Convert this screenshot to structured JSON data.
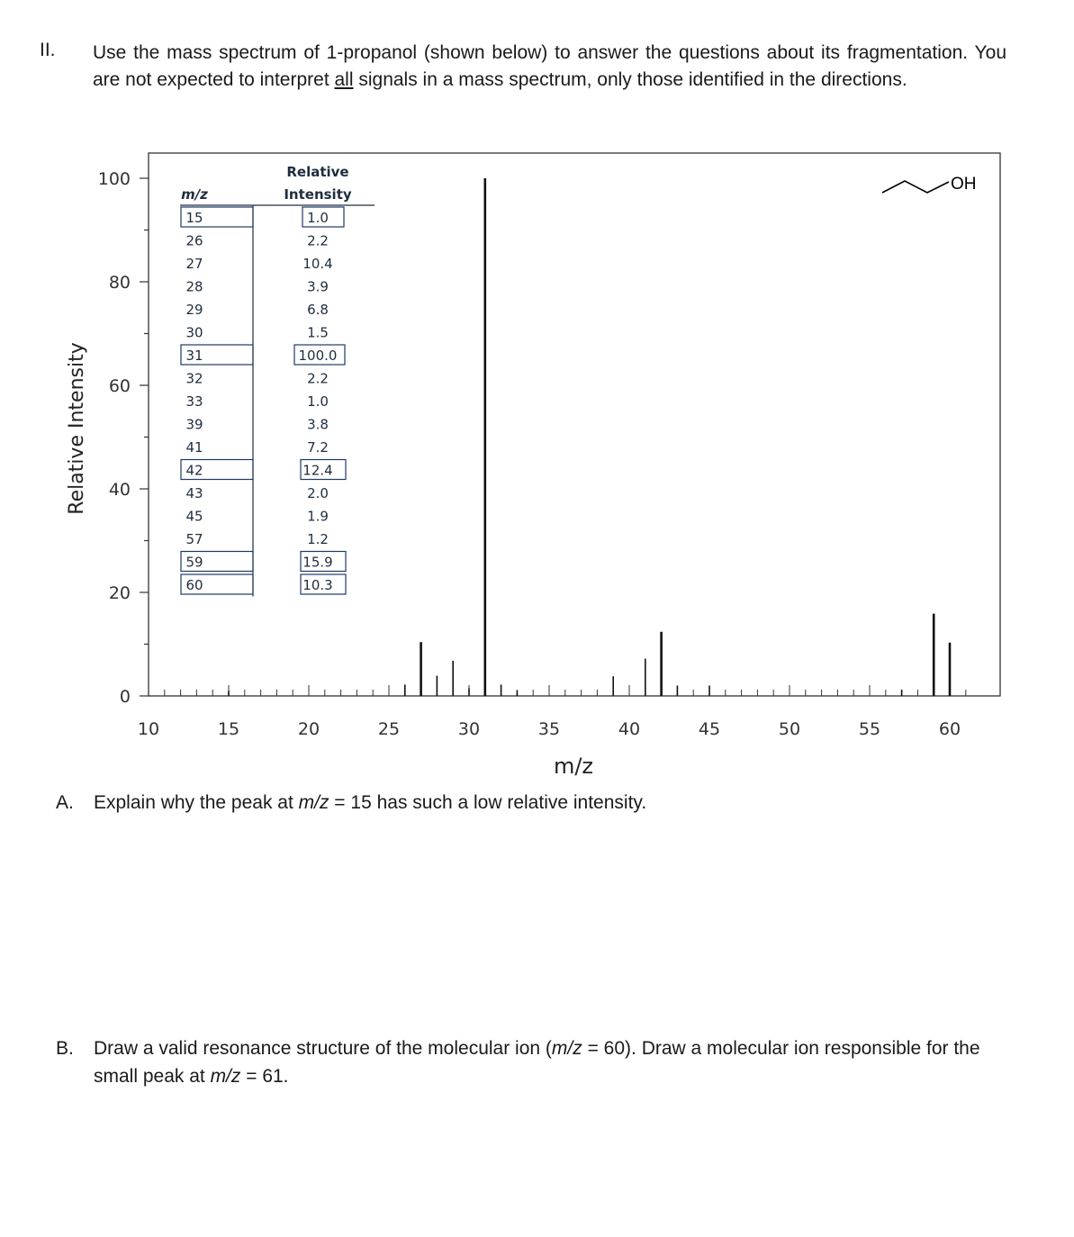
{
  "section_number": "II.",
  "intro": {
    "part1": "Use the mass spectrum of 1-propanol (shown below) to answer the questions about its fragmentation.  You are not expected to interpret ",
    "emphasis": "all",
    "part2": " signals in a mass spectrum, only those identified in the directions."
  },
  "question_a": {
    "letter": "A.",
    "text1": "Explain why the peak at ",
    "mz": "m/z",
    "text2": " = 15 has such a low relative intensity."
  },
  "question_b": {
    "letter": "B.",
    "text1": "Draw a valid resonance structure of the molecular ion (",
    "mz1": "m/z",
    "text2": " = 60).  Draw a molecular ion responsible for the small peak at ",
    "mz2": "m/z",
    "text3": " = 61."
  },
  "molecule_label": "OH",
  "table": {
    "header_mz": "m/z",
    "header_intensity_line1": "Relative",
    "header_intensity_line2": "Intensity",
    "rows": [
      {
        "mz": "15",
        "intensity": "1.0",
        "boxed": true
      },
      {
        "mz": "26",
        "intensity": "2.2",
        "boxed": false
      },
      {
        "mz": "27",
        "intensity": "10.4",
        "boxed": false
      },
      {
        "mz": "28",
        "intensity": "3.9",
        "boxed": false
      },
      {
        "mz": "29",
        "intensity": "6.8",
        "boxed": false
      },
      {
        "mz": "30",
        "intensity": "1.5",
        "boxed": false
      },
      {
        "mz": "31",
        "intensity": "100.0",
        "boxed": true
      },
      {
        "mz": "32",
        "intensity": "2.2",
        "boxed": false
      },
      {
        "mz": "33",
        "intensity": "1.0",
        "boxed": false
      },
      {
        "mz": "39",
        "intensity": "3.8",
        "boxed": false
      },
      {
        "mz": "41",
        "intensity": "7.2",
        "boxed": false
      },
      {
        "mz": "42",
        "intensity": "12.4",
        "boxed": true
      },
      {
        "mz": "43",
        "intensity": "2.0",
        "boxed": false
      },
      {
        "mz": "45",
        "intensity": "1.9",
        "boxed": false
      },
      {
        "mz": "57",
        "intensity": "1.2",
        "boxed": false
      },
      {
        "mz": "59",
        "intensity": "15.9",
        "boxed": true
      },
      {
        "mz": "60",
        "intensity": "10.3",
        "boxed": true
      }
    ]
  },
  "chart_data": {
    "type": "bar",
    "title": "",
    "xlabel": "m/z",
    "ylabel": "Relative Intensity",
    "xlim": [
      10,
      62
    ],
    "ylim": [
      0,
      100
    ],
    "xticks": [
      10,
      15,
      20,
      25,
      30,
      35,
      40,
      45,
      50,
      55,
      60
    ],
    "yticks": [
      0,
      20,
      40,
      60,
      80,
      100
    ],
    "grid": false,
    "series": [
      {
        "x": [
          15,
          26,
          27,
          28,
          29,
          30,
          31,
          32,
          33,
          39,
          41,
          42,
          43,
          45,
          57,
          59,
          60
        ],
        "values": [
          1.0,
          2.2,
          10.4,
          3.9,
          6.8,
          1.5,
          100.0,
          2.2,
          1.0,
          3.8,
          7.2,
          12.4,
          2.0,
          1.9,
          1.2,
          15.9,
          10.3
        ]
      }
    ]
  }
}
